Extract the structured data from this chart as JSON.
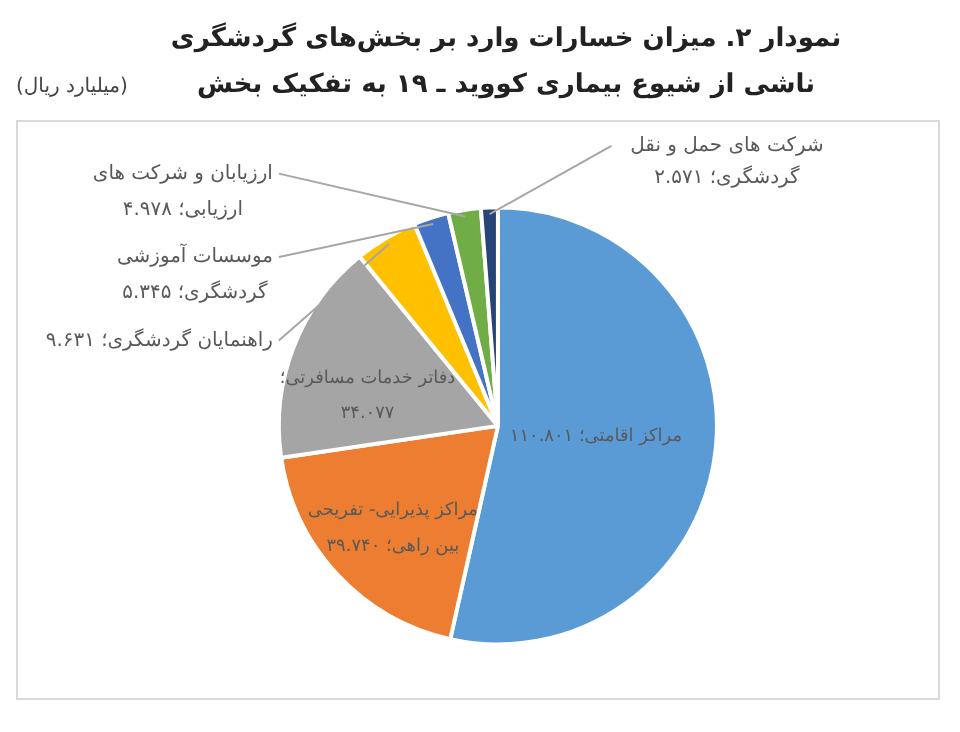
{
  "chart_data": {
    "type": "pie",
    "title": "نمودار ۲. میزان خسارات وارد بر بخش‌های گردشگری ناشی از شیوع بیماری کووید ـ ۱۹ به تفکیک بخش",
    "annotations": [
      "(میلیارد ریال)"
    ],
    "categories": [
      "مراکز اقامتی؛",
      "مراکز پذیرایی- تفریحی بین راهی؛",
      "دفاتر خدمات مسافرتی؛",
      "راهنمایان گردشگری؛",
      "موسسات آموزشی گردشگری؛",
      "ارزیابان و شرکت های ارزیابی؛",
      "شرکت های حمل و نقل گردشگری؛"
    ],
    "values": [
      110.801,
      39.74,
      34.077,
      9.631,
      5.345,
      4.978,
      2.571
    ],
    "value_labels": [
      "۱۱۰.۸۰۱",
      "۳۹.۷۴۰",
      "۳۴.۰۷۷",
      "۹.۶۳۱",
      "۵.۳۴۵",
      "۴.۹۷۸",
      "۲.۵۷۱"
    ],
    "colors": [
      "#5b9bd5",
      "#ed7d31",
      "#a5a5a5",
      "#ffc000",
      "#4472c4",
      "#70ad47",
      "#264478"
    ],
    "legend": false
  }
}
